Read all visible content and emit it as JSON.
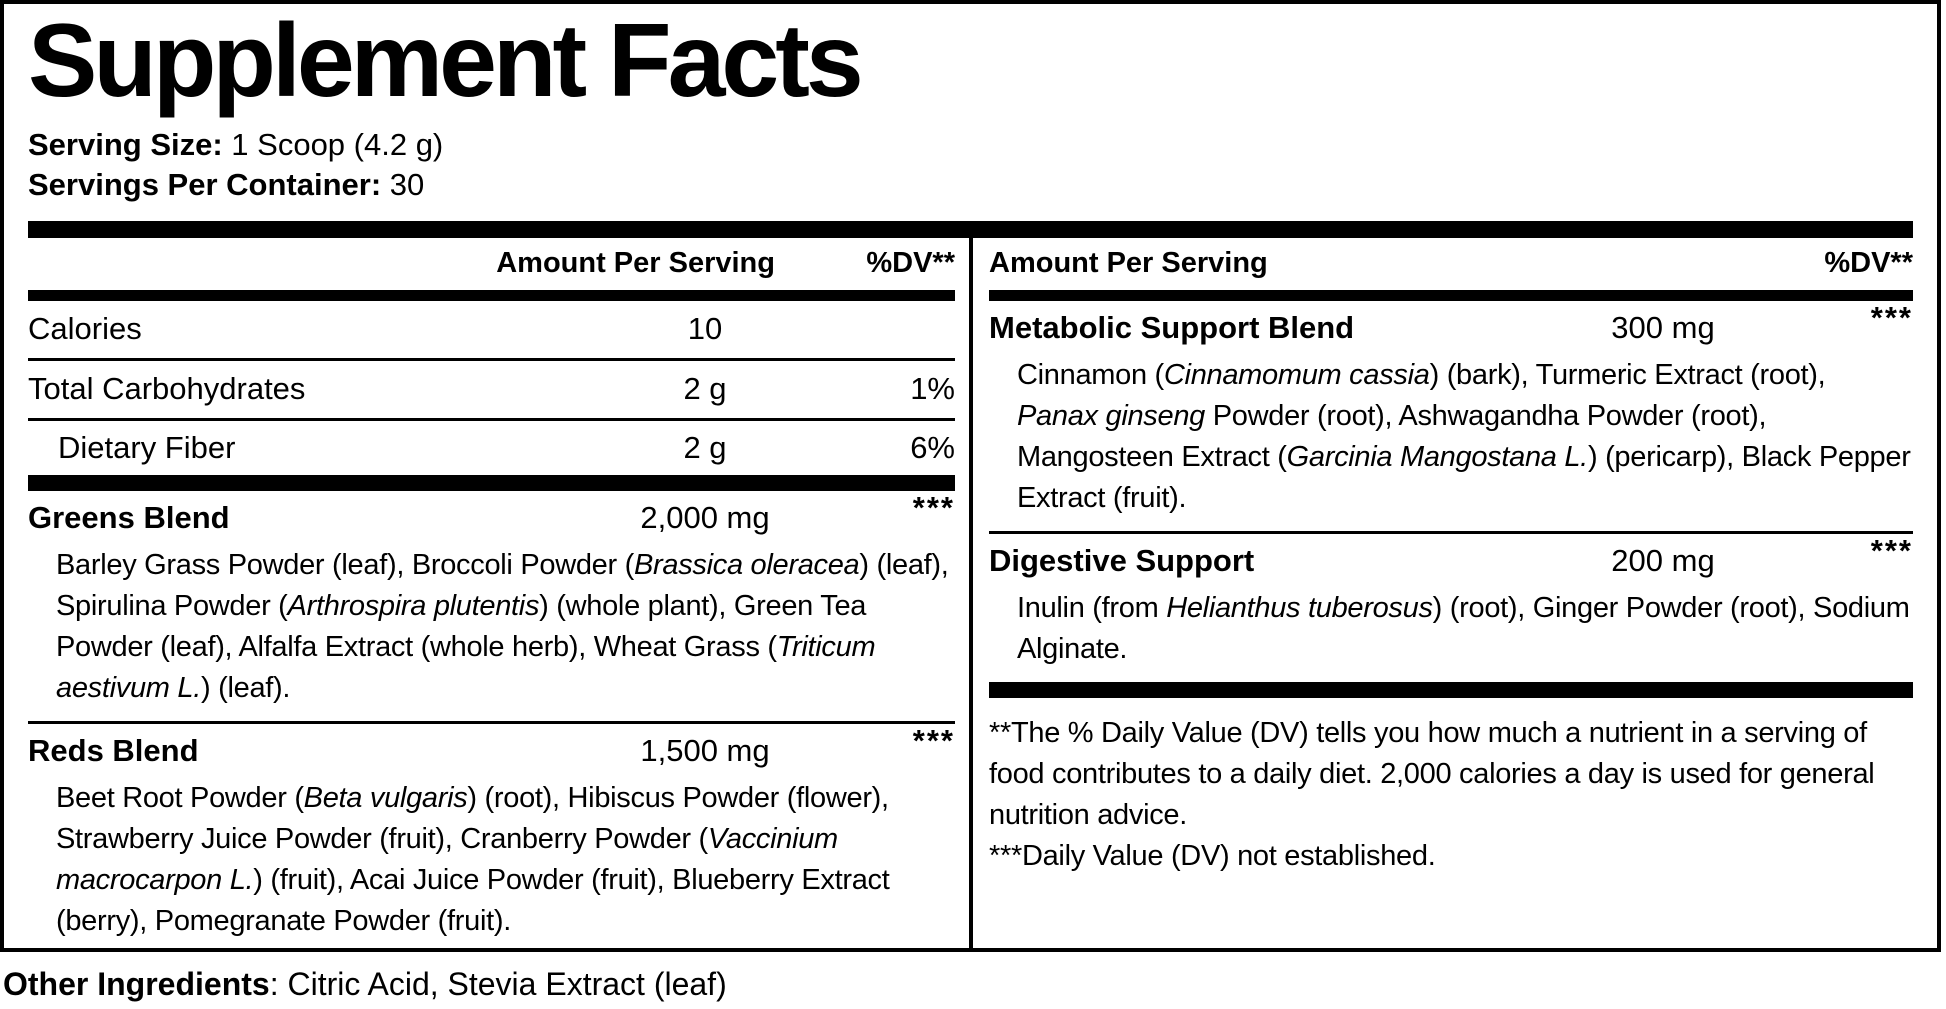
{
  "title": "Supplement Facts",
  "serving": {
    "size_label": "Serving Size:",
    "size_value": " 1 Scoop (4.2 g)",
    "per_container_label": "Servings Per Container:",
    "per_container_value": " 30"
  },
  "columns": {
    "left": {
      "header": {
        "amount": "Amount Per Serving",
        "dv": "%DV**"
      },
      "nutrients": [
        {
          "name": "Calories",
          "amount": "10",
          "dv": ""
        },
        {
          "name": "Total Carbohydrates",
          "amount": "2 g",
          "dv": "1%"
        },
        {
          "name": "Dietary Fiber",
          "amount": "2 g",
          "dv": "6%"
        }
      ],
      "blends": [
        {
          "name": "Greens Blend",
          "amount": "2,000 mg",
          "dv": "***",
          "ingredients": [
            {
              "t": "Barley Grass Powder (leaf), Broccoli Powder ("
            },
            {
              "t": "Brassica oleracea",
              "i": true
            },
            {
              "t": ") (leaf), Spirulina Powder ("
            },
            {
              "t": "Arthrospira plutentis",
              "i": true
            },
            {
              "t": ") (whole plant), Green Tea Powder (leaf), Alfalfa Extract (whole herb), Wheat Grass ("
            },
            {
              "t": "Triticum aestivum L.",
              "i": true
            },
            {
              "t": ") (leaf)."
            }
          ]
        },
        {
          "name": "Reds Blend",
          "amount": "1,500 mg",
          "dv": "***",
          "ingredients": [
            {
              "t": "Beet Root Powder ("
            },
            {
              "t": "Beta vulgaris",
              "i": true
            },
            {
              "t": ") (root), Hibiscus Powder (flower), Strawberry Juice Powder (fruit), Cranberry Powder ("
            },
            {
              "t": "Vaccinium macrocarpon L.",
              "i": true
            },
            {
              "t": ") (fruit), Acai Juice Powder (fruit), Blueberry Extract (berry), Pomegranate Powder (fruit)."
            }
          ]
        }
      ]
    },
    "right": {
      "header": {
        "amount": "Amount Per Serving",
        "dv": "%DV**"
      },
      "blends": [
        {
          "name": "Metabolic Support Blend",
          "amount": "300 mg",
          "dv": "***",
          "ingredients": [
            {
              "t": "Cinnamon ("
            },
            {
              "t": "Cinnamomum cassia",
              "i": true
            },
            {
              "t": ") (bark), Turmeric Extract (root), "
            },
            {
              "t": "Panax ginseng",
              "i": true
            },
            {
              "t": " Powder (root), Ashwagandha Powder (root), Mangosteen Extract ("
            },
            {
              "t": "Garcinia Mangostana L.",
              "i": true
            },
            {
              "t": ") (pericarp), Black Pepper Extract (fruit)."
            }
          ]
        },
        {
          "name": "Digestive Support",
          "amount": "200 mg",
          "dv": "***",
          "ingredients": [
            {
              "t": "Inulin (from "
            },
            {
              "t": "Helianthus tuberosus",
              "i": true
            },
            {
              "t": ") (root), Ginger Powder (root), Sodium Alginate."
            }
          ]
        }
      ],
      "footnotes": [
        "**The % Daily Value (DV) tells you how much a nutrient in a serving of food contributes to a daily diet. 2,000 calories a day is used for general nutrition advice.",
        "***Daily Value (DV) not established."
      ]
    }
  },
  "other_ingredients": {
    "label": "Other Ingredients",
    "value": ": Citric Acid, Stevia Extract (leaf)"
  }
}
